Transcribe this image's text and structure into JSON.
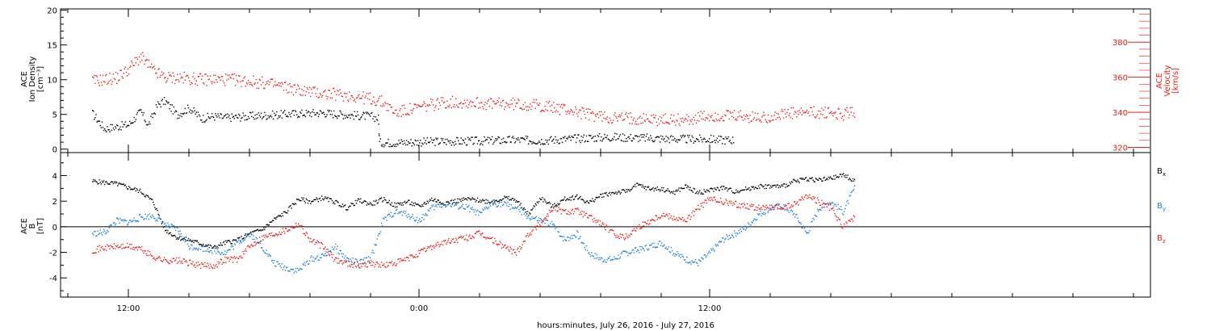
{
  "colors": {
    "black": "#000000",
    "red": "#e8211b",
    "blue": "#1f7fd6",
    "axis": "#000000"
  },
  "chart_data": [
    {
      "type": "scatter",
      "panel": "density-velocity",
      "ylabel": [
        "ACE",
        "Ion Density",
        "[cm⁻³]"
      ],
      "ylabel_right": [
        "ACE",
        "Velocity",
        "[km/s]"
      ],
      "ylim": [
        -0.5,
        20.2
      ],
      "ylim_right": [
        317,
        399
      ],
      "yticks": [
        0,
        5,
        10,
        15,
        20
      ],
      "yticks_right": [
        320,
        340,
        360,
        380
      ],
      "grid": false,
      "series": [
        {
          "axis": "left",
          "color": "black",
          "points": [
            [
              -1.5,
              5.2
            ],
            [
              -1.0,
              3.0
            ],
            [
              -0.5,
              3.3
            ],
            [
              0.0,
              3.6
            ],
            [
              0.5,
              5.5
            ],
            [
              0.8,
              3.5
            ],
            [
              1.2,
              6.5
            ],
            [
              1.5,
              7.0
            ],
            [
              2.0,
              5.0
            ],
            [
              2.5,
              6.0
            ],
            [
              3.0,
              4.5
            ],
            [
              3.5,
              4.8
            ],
            [
              4.0,
              4.6
            ],
            [
              5.0,
              4.8
            ],
            [
              6.0,
              5.0
            ],
            [
              7.0,
              5.2
            ],
            [
              8.0,
              5.3
            ],
            [
              9.0,
              5.0
            ],
            [
              10.0,
              4.8
            ],
            [
              10.3,
              4.5
            ],
            [
              10.35,
              1.0
            ],
            [
              11.0,
              1.0
            ],
            [
              12.0,
              1.1
            ],
            [
              13.0,
              1.2
            ],
            [
              14.0,
              1.2
            ],
            [
              15.0,
              1.3
            ],
            [
              16.0,
              1.4
            ],
            [
              17.0,
              1.3
            ],
            [
              18.0,
              1.5
            ],
            [
              19.0,
              1.7
            ],
            [
              20.0,
              1.8
            ],
            [
              21.0,
              1.7
            ],
            [
              22.0,
              1.6
            ],
            [
              23.0,
              1.5
            ],
            [
              24.0,
              1.5
            ],
            [
              24.5,
              1.4
            ],
            [
              25.0,
              1.4
            ]
          ]
        },
        {
          "axis": "right",
          "color": "red",
          "points": [
            [
              -1.5,
              358
            ],
            [
              -1.0,
              359
            ],
            [
              -0.5,
              360
            ],
            [
              0.0,
              365
            ],
            [
              0.5,
              372
            ],
            [
              1.0,
              364
            ],
            [
              1.5,
              360
            ],
            [
              2.0,
              360
            ],
            [
              3.0,
              359
            ],
            [
              4.0,
              359
            ],
            [
              5.0,
              358
            ],
            [
              6.0,
              356
            ],
            [
              7.0,
              353
            ],
            [
              8.0,
              351
            ],
            [
              9.0,
              350
            ],
            [
              10.0,
              348
            ],
            [
              10.5,
              346
            ],
            [
              11.0,
              340
            ],
            [
              12.0,
              343
            ],
            [
              13.0,
              346
            ],
            [
              14.0,
              346
            ],
            [
              15.0,
              345
            ],
            [
              16.0,
              345
            ],
            [
              17.0,
              344
            ],
            [
              18.0,
              342
            ],
            [
              19.0,
              339
            ],
            [
              20.0,
              337
            ],
            [
              21.0,
              337
            ],
            [
              22.0,
              336
            ],
            [
              23.0,
              336
            ],
            [
              24.0,
              338
            ],
            [
              25.0,
              338
            ],
            [
              26.0,
              337
            ],
            [
              27.0,
              339
            ],
            [
              28.0,
              340
            ],
            [
              29.0,
              340
            ],
            [
              29.5,
              339
            ],
            [
              30.0,
              341
            ]
          ]
        }
      ]
    },
    {
      "type": "scatter",
      "panel": "magnetic-field",
      "ylabel": [
        "ACE",
        "B",
        "[nT]"
      ],
      "ylim": [
        -5.5,
        5.8
      ],
      "yticks": [
        -4,
        -2,
        0,
        2,
        4
      ],
      "grid": false,
      "series": [
        {
          "name": "B",
          "sub": "x",
          "color": "black",
          "points": [
            [
              -1.5,
              3.6
            ],
            [
              -0.5,
              3.4
            ],
            [
              0.5,
              2.8
            ],
            [
              1.0,
              2.0
            ],
            [
              1.5,
              -0.2
            ],
            [
              2.0,
              -0.8
            ],
            [
              2.5,
              -1.0
            ],
            [
              3.0,
              -1.3
            ],
            [
              3.5,
              -1.6
            ],
            [
              4.0,
              -1.2
            ],
            [
              4.5,
              -1.0
            ],
            [
              5.0,
              -0.5
            ],
            [
              5.5,
              -0.2
            ],
            [
              6.0,
              0.6
            ],
            [
              6.5,
              1.2
            ],
            [
              7.0,
              2.2
            ],
            [
              7.5,
              2.0
            ],
            [
              8.0,
              2.3
            ],
            [
              8.5,
              2.0
            ],
            [
              9.0,
              1.5
            ],
            [
              9.5,
              2.1
            ],
            [
              10.0,
              1.8
            ],
            [
              10.5,
              2.2
            ],
            [
              11.0,
              1.7
            ],
            [
              11.5,
              2.0
            ],
            [
              12.0,
              1.6
            ],
            [
              12.5,
              2.2
            ],
            [
              13.0,
              1.9
            ],
            [
              14.0,
              2.2
            ],
            [
              15.0,
              2.0
            ],
            [
              15.5,
              2.3
            ],
            [
              16.0,
              2.1
            ],
            [
              16.5,
              1.0
            ],
            [
              17.0,
              2.3
            ],
            [
              17.5,
              1.6
            ],
            [
              18.0,
              2.2
            ],
            [
              18.5,
              2.4
            ],
            [
              19.0,
              1.9
            ],
            [
              19.5,
              2.5
            ],
            [
              20.0,
              2.7
            ],
            [
              20.5,
              2.8
            ],
            [
              21.0,
              3.3
            ],
            [
              21.5,
              3.0
            ],
            [
              22.0,
              3.0
            ],
            [
              22.5,
              2.7
            ],
            [
              23.0,
              3.2
            ],
            [
              23.5,
              2.7
            ],
            [
              24.0,
              2.9
            ],
            [
              24.5,
              3.1
            ],
            [
              25.0,
              2.8
            ],
            [
              26.0,
              3.2
            ],
            [
              27.0,
              3.2
            ],
            [
              27.5,
              3.6
            ],
            [
              28.0,
              3.8
            ],
            [
              28.5,
              3.7
            ],
            [
              29.0,
              3.8
            ],
            [
              29.5,
              4.1
            ],
            [
              30.0,
              3.6
            ]
          ]
        },
        {
          "name": "B",
          "sub": "y",
          "color": "blue",
          "points": [
            [
              -1.5,
              -0.5
            ],
            [
              -1.0,
              -0.4
            ],
            [
              -0.5,
              0.5
            ],
            [
              0.0,
              0.4
            ],
            [
              0.5,
              0.8
            ],
            [
              1.0,
              0.9
            ],
            [
              1.5,
              0.2
            ],
            [
              2.0,
              -0.2
            ],
            [
              2.5,
              -1.5
            ],
            [
              3.0,
              -1.6
            ],
            [
              3.5,
              -1.8
            ],
            [
              4.0,
              -2.0
            ],
            [
              4.5,
              -1.2
            ],
            [
              5.0,
              -0.5
            ],
            [
              5.5,
              -1.5
            ],
            [
              6.0,
              -2.8
            ],
            [
              6.5,
              -3.2
            ],
            [
              7.0,
              -3.4
            ],
            [
              7.5,
              -2.5
            ],
            [
              8.0,
              -2.3
            ],
            [
              8.5,
              -1.5
            ],
            [
              9.0,
              -2.5
            ],
            [
              9.5,
              -2.8
            ],
            [
              10.0,
              -2.4
            ],
            [
              10.5,
              0.5
            ],
            [
              11.0,
              1.2
            ],
            [
              11.5,
              1.0
            ],
            [
              12.0,
              0.5
            ],
            [
              12.5,
              1.5
            ],
            [
              13.0,
              1.8
            ],
            [
              13.5,
              1.7
            ],
            [
              14.0,
              1.5
            ],
            [
              14.5,
              1.0
            ],
            [
              15.0,
              1.9
            ],
            [
              15.5,
              1.8
            ],
            [
              16.0,
              1.5
            ],
            [
              16.5,
              0.8
            ],
            [
              17.0,
              0.5
            ],
            [
              17.5,
              0.2
            ],
            [
              18.0,
              -1.0
            ],
            [
              18.5,
              -0.5
            ],
            [
              19.0,
              -2.0
            ],
            [
              19.5,
              -2.5
            ],
            [
              20.0,
              -2.5
            ],
            [
              20.5,
              -2.0
            ],
            [
              21.0,
              -1.8
            ],
            [
              21.5,
              -1.5
            ],
            [
              22.0,
              -1.2
            ],
            [
              22.5,
              -2.0
            ],
            [
              23.0,
              -2.5
            ],
            [
              23.5,
              -2.8
            ],
            [
              24.0,
              -2.0
            ],
            [
              24.5,
              -1.0
            ],
            [
              25.0,
              -0.5
            ],
            [
              25.5,
              0.0
            ],
            [
              26.0,
              1.0
            ],
            [
              26.5,
              1.5
            ],
            [
              27.0,
              1.7
            ],
            [
              27.5,
              1.0
            ],
            [
              28.0,
              -0.5
            ],
            [
              28.5,
              1.5
            ],
            [
              29.0,
              2.0
            ],
            [
              29.5,
              1.2
            ],
            [
              30.0,
              3.2
            ]
          ]
        },
        {
          "name": "B",
          "sub": "z",
          "color": "red",
          "points": [
            [
              -1.5,
              -1.8
            ],
            [
              -1.0,
              -1.6
            ],
            [
              -0.5,
              -1.5
            ],
            [
              0.0,
              -1.5
            ],
            [
              0.5,
              -1.7
            ],
            [
              1.0,
              -2.3
            ],
            [
              1.5,
              -2.6
            ],
            [
              2.0,
              -2.6
            ],
            [
              2.5,
              -2.8
            ],
            [
              3.0,
              -3.0
            ],
            [
              3.5,
              -3.0
            ],
            [
              4.0,
              -2.5
            ],
            [
              4.5,
              -2.5
            ],
            [
              5.0,
              -1.5
            ],
            [
              5.5,
              -0.8
            ],
            [
              6.0,
              -0.5
            ],
            [
              6.5,
              -0.2
            ],
            [
              7.0,
              0.3
            ],
            [
              7.5,
              -1.0
            ],
            [
              8.0,
              -1.5
            ],
            [
              8.5,
              -2.5
            ],
            [
              9.0,
              -2.8
            ],
            [
              9.5,
              -3.0
            ],
            [
              10.0,
              -2.8
            ],
            [
              10.5,
              -3.0
            ],
            [
              11.0,
              -2.8
            ],
            [
              11.5,
              -2.5
            ],
            [
              12.0,
              -2.0
            ],
            [
              12.5,
              -1.5
            ],
            [
              13.0,
              -1.2
            ],
            [
              13.5,
              -1.0
            ],
            [
              14.0,
              -0.8
            ],
            [
              14.5,
              -0.5
            ],
            [
              15.0,
              -1.0
            ],
            [
              15.5,
              -1.5
            ],
            [
              16.0,
              -2.0
            ],
            [
              16.5,
              -0.5
            ],
            [
              17.0,
              0.3
            ],
            [
              17.5,
              1.5
            ],
            [
              18.0,
              1.2
            ],
            [
              18.5,
              1.3
            ],
            [
              19.0,
              0.8
            ],
            [
              19.5,
              0.3
            ],
            [
              20.0,
              -0.5
            ],
            [
              20.5,
              -0.8
            ],
            [
              21.0,
              0.0
            ],
            [
              21.5,
              0.5
            ],
            [
              22.0,
              1.0
            ],
            [
              22.5,
              0.8
            ],
            [
              23.0,
              0.5
            ],
            [
              23.5,
              1.5
            ],
            [
              24.0,
              2.2
            ],
            [
              24.5,
              2.0
            ],
            [
              25.0,
              1.8
            ],
            [
              25.5,
              1.7
            ],
            [
              26.0,
              1.5
            ],
            [
              27.0,
              1.5
            ],
            [
              27.5,
              1.8
            ],
            [
              28.0,
              2.5
            ],
            [
              28.5,
              2.0
            ],
            [
              29.0,
              1.5
            ],
            [
              29.5,
              0.0
            ],
            [
              30.0,
              0.8
            ]
          ]
        }
      ]
    }
  ],
  "xaxis": {
    "range": [
      -2.8,
      42.2
    ],
    "ticks": [
      {
        "x": 0,
        "label": "12:00"
      },
      {
        "x": 12,
        "label": "0:00"
      },
      {
        "x": 24,
        "label": "12:00"
      }
    ],
    "minor": [
      -2.5,
      2.5,
      5,
      7.5,
      10,
      14.5,
      17,
      19.5,
      22,
      26.5,
      29,
      31.5,
      34,
      36.5,
      39,
      41.5
    ],
    "title": "hours:minutes, July 26, 2016 - July 27, 2016"
  }
}
